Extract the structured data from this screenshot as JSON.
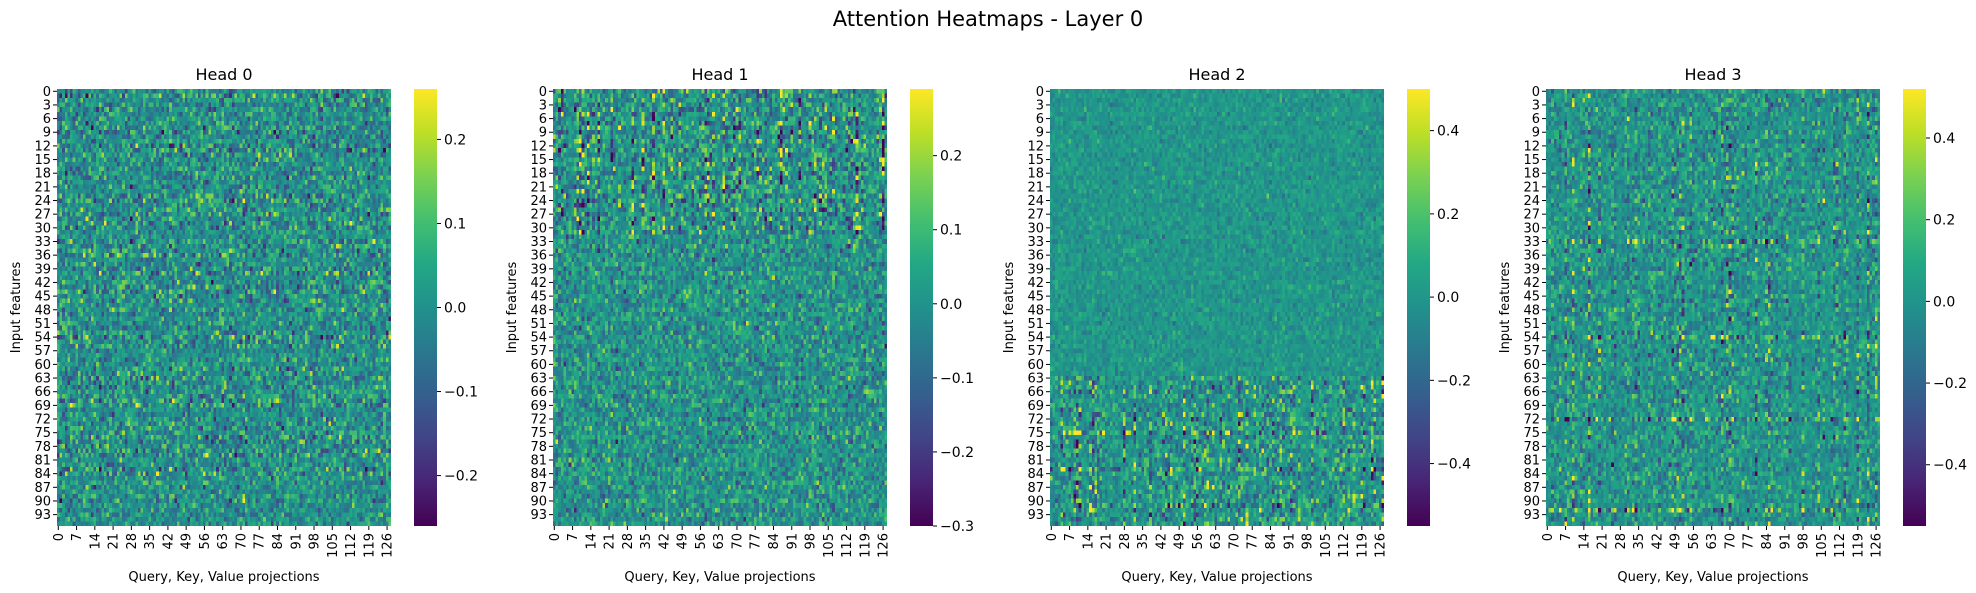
{
  "figure": {
    "title": "Attention Heatmaps - Layer 0"
  },
  "chart_data": [
    {
      "type": "heatmap",
      "title": "Head 0",
      "xlabel": "Query, Key, Value projections",
      "ylabel": "Input features",
      "rows": 96,
      "cols": 128,
      "x_ticks": [
        "0",
        "7",
        "14",
        "21",
        "28",
        "35",
        "42",
        "49",
        "56",
        "63",
        "70",
        "77",
        "84",
        "91",
        "98",
        "105",
        "112",
        "119",
        "126"
      ],
      "y_ticks": [
        "0",
        "3",
        "6",
        "9",
        "12",
        "15",
        "18",
        "21",
        "24",
        "27",
        "30",
        "33",
        "36",
        "39",
        "42",
        "45",
        "48",
        "51",
        "54",
        "57",
        "60",
        "63",
        "66",
        "69",
        "72",
        "75",
        "78",
        "81",
        "84",
        "87",
        "90",
        "93"
      ],
      "colorbar": {
        "colormap": "viridis",
        "vmin": -0.26,
        "vmax": 0.26,
        "ticks": [
          "0.2",
          "0.1",
          "0.0",
          "−0.1",
          "−0.2"
        ],
        "tick_values": [
          0.2,
          0.1,
          0.0,
          -0.1,
          -0.2
        ]
      },
      "value_range": [
        -0.26,
        0.26
      ]
    },
    {
      "type": "heatmap",
      "title": "Head 1",
      "xlabel": "Query, Key, Value projections",
      "ylabel": "Input features",
      "rows": 96,
      "cols": 128,
      "x_ticks": [
        "0",
        "7",
        "14",
        "21",
        "28",
        "35",
        "42",
        "49",
        "56",
        "63",
        "70",
        "77",
        "84",
        "91",
        "98",
        "105",
        "112",
        "119",
        "126"
      ],
      "y_ticks": [
        "0",
        "3",
        "6",
        "9",
        "12",
        "15",
        "18",
        "21",
        "24",
        "27",
        "30",
        "33",
        "36",
        "39",
        "42",
        "45",
        "48",
        "51",
        "54",
        "57",
        "60",
        "63",
        "66",
        "69",
        "72",
        "75",
        "78",
        "81",
        "84",
        "87",
        "90",
        "93"
      ],
      "colorbar": {
        "colormap": "viridis",
        "vmin": -0.3,
        "vmax": 0.29,
        "ticks": [
          "0.2",
          "0.1",
          "0.0",
          "−0.1",
          "−0.2",
          "−0.3"
        ],
        "tick_values": [
          0.2,
          0.1,
          0.0,
          -0.1,
          -0.2,
          -0.3
        ]
      },
      "value_range": [
        -0.3,
        0.29
      ]
    },
    {
      "type": "heatmap",
      "title": "Head 2",
      "xlabel": "Query, Key, Value projections",
      "ylabel": "Input features",
      "rows": 96,
      "cols": 128,
      "x_ticks": [
        "0",
        "7",
        "14",
        "21",
        "28",
        "35",
        "42",
        "49",
        "56",
        "63",
        "70",
        "77",
        "84",
        "91",
        "98",
        "105",
        "112",
        "119",
        "126"
      ],
      "y_ticks": [
        "0",
        "3",
        "6",
        "9",
        "12",
        "15",
        "18",
        "21",
        "24",
        "27",
        "30",
        "33",
        "36",
        "39",
        "42",
        "45",
        "48",
        "51",
        "54",
        "57",
        "60",
        "63",
        "66",
        "69",
        "72",
        "75",
        "78",
        "81",
        "84",
        "87",
        "90",
        "93"
      ],
      "colorbar": {
        "colormap": "viridis",
        "vmin": -0.55,
        "vmax": 0.5,
        "ticks": [
          "0.4",
          "0.2",
          "0.0",
          "−0.2",
          "−0.4"
        ],
        "tick_values": [
          0.4,
          0.2,
          0.0,
          -0.2,
          -0.4
        ]
      },
      "value_range": [
        -0.55,
        0.5
      ]
    },
    {
      "type": "heatmap",
      "title": "Head 3",
      "xlabel": "Query, Key, Value projections",
      "ylabel": "Input features",
      "rows": 96,
      "cols": 128,
      "x_ticks": [
        "0",
        "7",
        "14",
        "21",
        "28",
        "35",
        "42",
        "49",
        "56",
        "63",
        "70",
        "77",
        "84",
        "91",
        "98",
        "105",
        "112",
        "119",
        "126"
      ],
      "y_ticks": [
        "0",
        "3",
        "6",
        "9",
        "12",
        "15",
        "18",
        "21",
        "24",
        "27",
        "30",
        "33",
        "36",
        "39",
        "42",
        "45",
        "48",
        "51",
        "54",
        "57",
        "60",
        "63",
        "66",
        "69",
        "72",
        "75",
        "78",
        "81",
        "84",
        "87",
        "90",
        "93"
      ],
      "colorbar": {
        "colormap": "viridis",
        "vmin": -0.55,
        "vmax": 0.52,
        "ticks": [
          "0.4",
          "0.2",
          "0.0",
          "−0.2",
          "−0.4"
        ],
        "tick_values": [
          0.4,
          0.2,
          0.0,
          -0.2,
          -0.4
        ]
      },
      "value_range": [
        -0.55,
        0.52
      ]
    }
  ]
}
